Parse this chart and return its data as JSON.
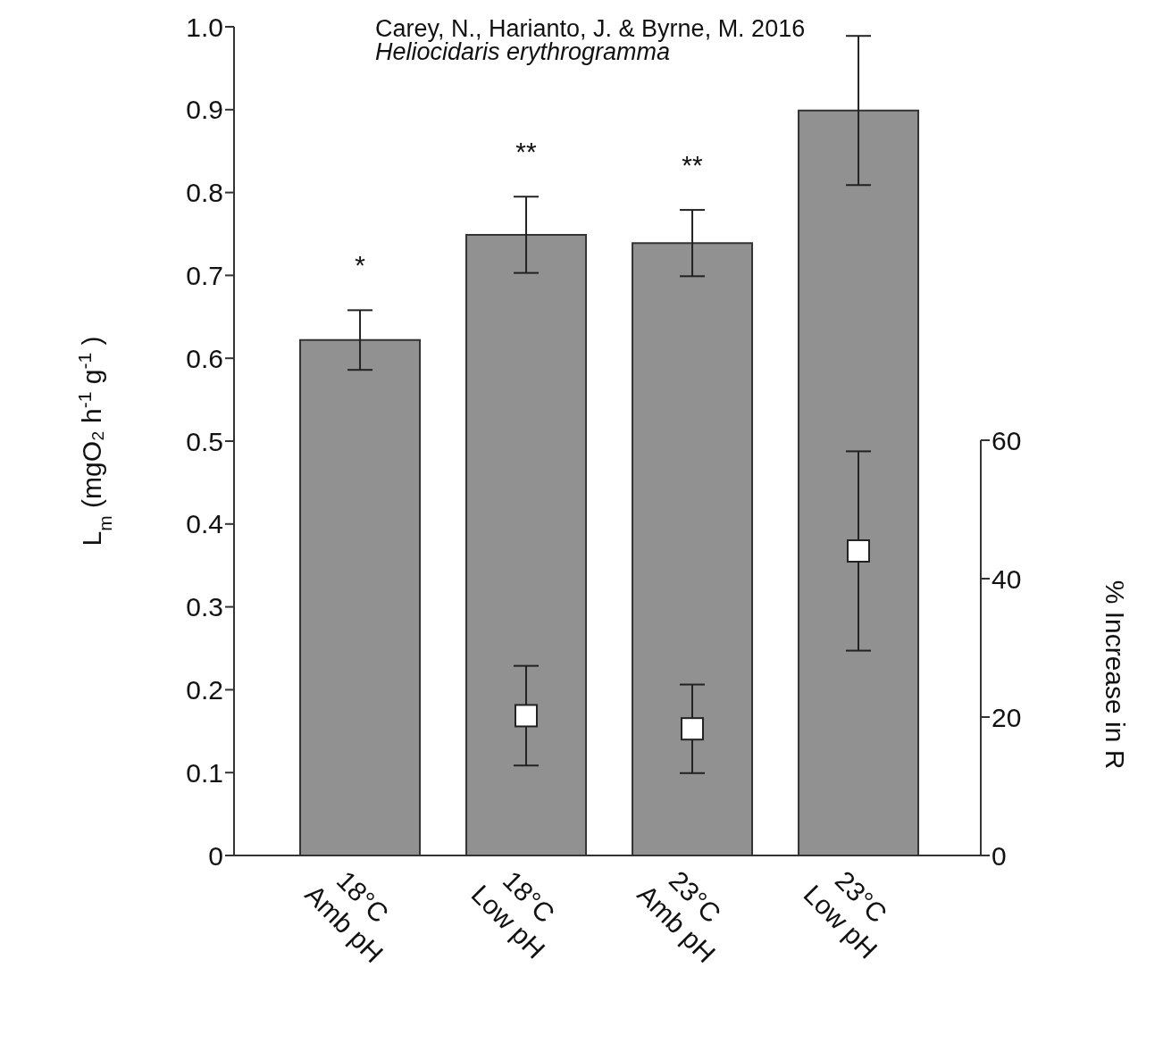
{
  "chart_data": {
    "type": "bar",
    "categories": [
      "18°C Amb pH",
      "18°C Low pH",
      "23°C Amb pH",
      "23°C Low pH"
    ],
    "series": [
      {
        "color": "#919191",
        "values": [
          0.622,
          0.749,
          0.739,
          0.899
        ],
        "errors": [
          0.036,
          0.046,
          0.04,
          0.09
        ]
      },
      {
        "type": "scatter",
        "axis": "y2",
        "color": "#ffffff",
        "marker": "square",
        "values": [
          null,
          20.2,
          18.3,
          44
        ],
        "errors": [
          null,
          7.2,
          6.4,
          14.4
        ]
      }
    ],
    "ylabel": "L$_{m}$ (mgO₂  h$^{-1}$ g$^{-1}$)",
    "y2label": "% Increase in R",
    "ylim": [
      0,
      1
    ],
    "yticks": [
      0,
      0.1,
      0.2,
      0.3,
      0.4,
      0.5,
      0.6,
      0.7,
      0.8,
      0.9,
      {
        "value": 1,
        "label": "1.0"
      }
    ],
    "y2lim": [
      0,
      60
    ],
    "y2ticks": [
      0,
      20,
      40,
      60
    ],
    "grid": false,
    "legend": false,
    "annotations": [
      "Carey, N., Harianto, J. & Byrne, M. 2016",
      "Heliocidaris erythrogramma",
      "*",
      "**",
      "**"
    ]
  }
}
